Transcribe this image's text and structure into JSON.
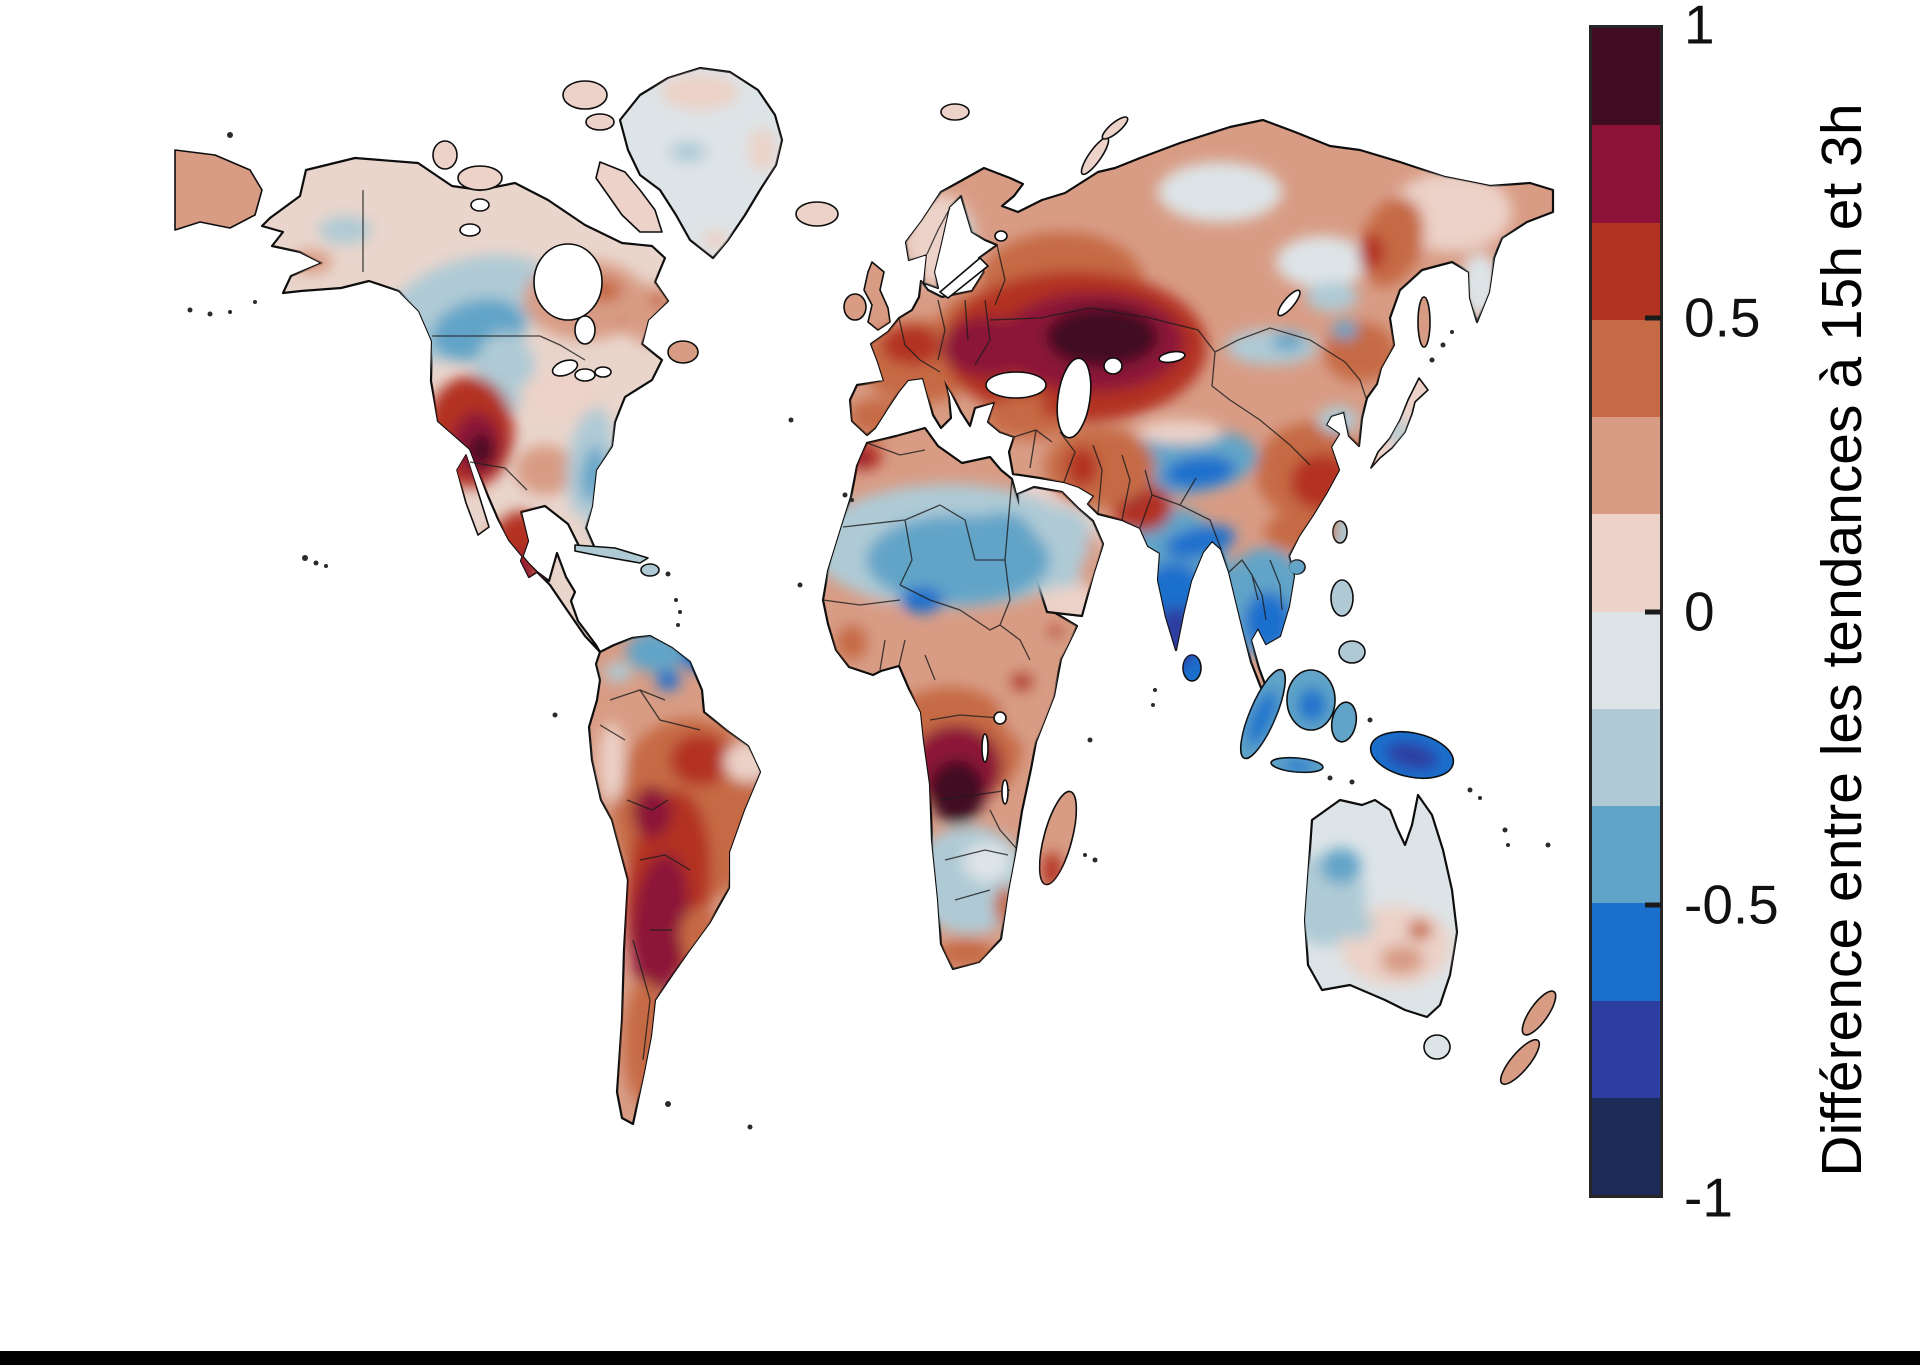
{
  "figure": {
    "background": "#ffffff",
    "bottom_bar_color": "#000000"
  },
  "chart_data": {
    "type": "heatmap",
    "title": "",
    "map": {
      "projection": "equirectangular world map, Antarctica not shown",
      "ocean_color": "#ffffff",
      "coastline_color": "#0d0d0d",
      "country_border_color": "#1c1c1c"
    },
    "colorbar": {
      "label": "Différence entre les tendances à 15h et 3h",
      "ticks": [
        "1",
        "0.5",
        "0",
        "-0.5",
        "-1"
      ],
      "tick_values": [
        1,
        0.5,
        0,
        -0.5,
        -1
      ],
      "range": [
        -1,
        1
      ],
      "n_segments": 12,
      "orientation": "vertical",
      "segment_colors": [
        "#3f0c21",
        "#8c1238",
        "#b33322",
        "#c66a45",
        "#d89c85",
        "#ecd2c8",
        "#dde4e7",
        "#afcad5",
        "#62a4c8",
        "#1b70cd",
        "#2d3da0",
        "#1b2a57"
      ]
    },
    "regions": [
      {
        "region": "Alaska",
        "approx_value": 0.1
      },
      {
        "region": "Western Canada (BC / Rockies)",
        "approx_value": -0.35
      },
      {
        "region": "Central Canada",
        "approx_value": 0.2
      },
      {
        "region": "Eastern Canada / Quebec",
        "approx_value": 0.15
      },
      {
        "region": "Western USA (Great Basin)",
        "approx_value": 0.85
      },
      {
        "region": "Eastern USA",
        "approx_value": -0.15
      },
      {
        "region": "Mexico (Sierra Madre)",
        "approx_value": 0.6
      },
      {
        "region": "Greenland",
        "approx_value": -0.05
      },
      {
        "region": "Northern South America (Venezuela / Guianas)",
        "approx_value": -0.4
      },
      {
        "region": "Amazon / Brazil",
        "approx_value": 0.45
      },
      {
        "region": "Bolivia - Paraguay - Northern Argentina",
        "approx_value": 0.9
      },
      {
        "region": "Patagonia",
        "approx_value": 0.5
      },
      {
        "region": "Western & Central Europe",
        "approx_value": 0.45
      },
      {
        "region": "Scandinavia",
        "approx_value": 0.15
      },
      {
        "region": "Eastern Europe / Ukraine / Volga",
        "approx_value": 0.7
      },
      {
        "region": "Kazakhstan / Caspian steppe",
        "approx_value": 0.95
      },
      {
        "region": "Siberia",
        "approx_value": 0.3
      },
      {
        "region": "Northeastern Siberia",
        "approx_value": 0.15
      },
      {
        "region": "Morocco / Atlas",
        "approx_value": 0.7
      },
      {
        "region": "Sahara & Sahel",
        "approx_value": -0.4
      },
      {
        "region": "West African coast (Gulf of Guinea)",
        "approx_value": 0.3
      },
      {
        "region": "Congo Basin / Angola",
        "approx_value": 0.9
      },
      {
        "region": "Horn of Africa",
        "approx_value": 0.25
      },
      {
        "region": "Southern Africa interior",
        "approx_value": -0.25
      },
      {
        "region": "South Africa coast",
        "approx_value": 0.35
      },
      {
        "region": "Madagascar",
        "approx_value": 0.3
      },
      {
        "region": "Arabian Peninsula interior",
        "approx_value": -0.25
      },
      {
        "region": "Turkey / Iran / Middle East",
        "approx_value": 0.55
      },
      {
        "region": "Pakistan / NW India",
        "approx_value": 0.55
      },
      {
        "region": "India",
        "approx_value": -0.7
      },
      {
        "region": "Tibetan Plateau",
        "approx_value": -0.35
      },
      {
        "region": "Mongolia",
        "approx_value": -0.1
      },
      {
        "region": "Eastern China",
        "approx_value": 0.5
      },
      {
        "region": "Southeast Asia (Indochina)",
        "approx_value": -0.45
      },
      {
        "region": "Indonesia / New Guinea",
        "approx_value": -0.65
      },
      {
        "region": "Japan",
        "approx_value": 0.1
      },
      {
        "region": "Western Australia",
        "approx_value": -0.2
      },
      {
        "region": "Central & Southern Australia",
        "approx_value": 0.15
      },
      {
        "region": "New Zealand",
        "approx_value": 0.25
      }
    ]
  },
  "palette": {
    "extreme_positive": "#3f0c21",
    "very_strong_positive": "#8c1238",
    "strong_positive": "#b33322",
    "medium_positive": "#c66a45",
    "positive": "#d89c85",
    "weak_positive": "#ecd2c8",
    "neutral": "#dde4e7",
    "weak_negative": "#afcad5",
    "medium_negative": "#62a4c8",
    "negative": "#1b70cd",
    "strong_negative": "#2d3da0",
    "deep_negative": "#1b2a57",
    "pale_land": "#e9d5cc",
    "ocean": "#ffffff"
  }
}
